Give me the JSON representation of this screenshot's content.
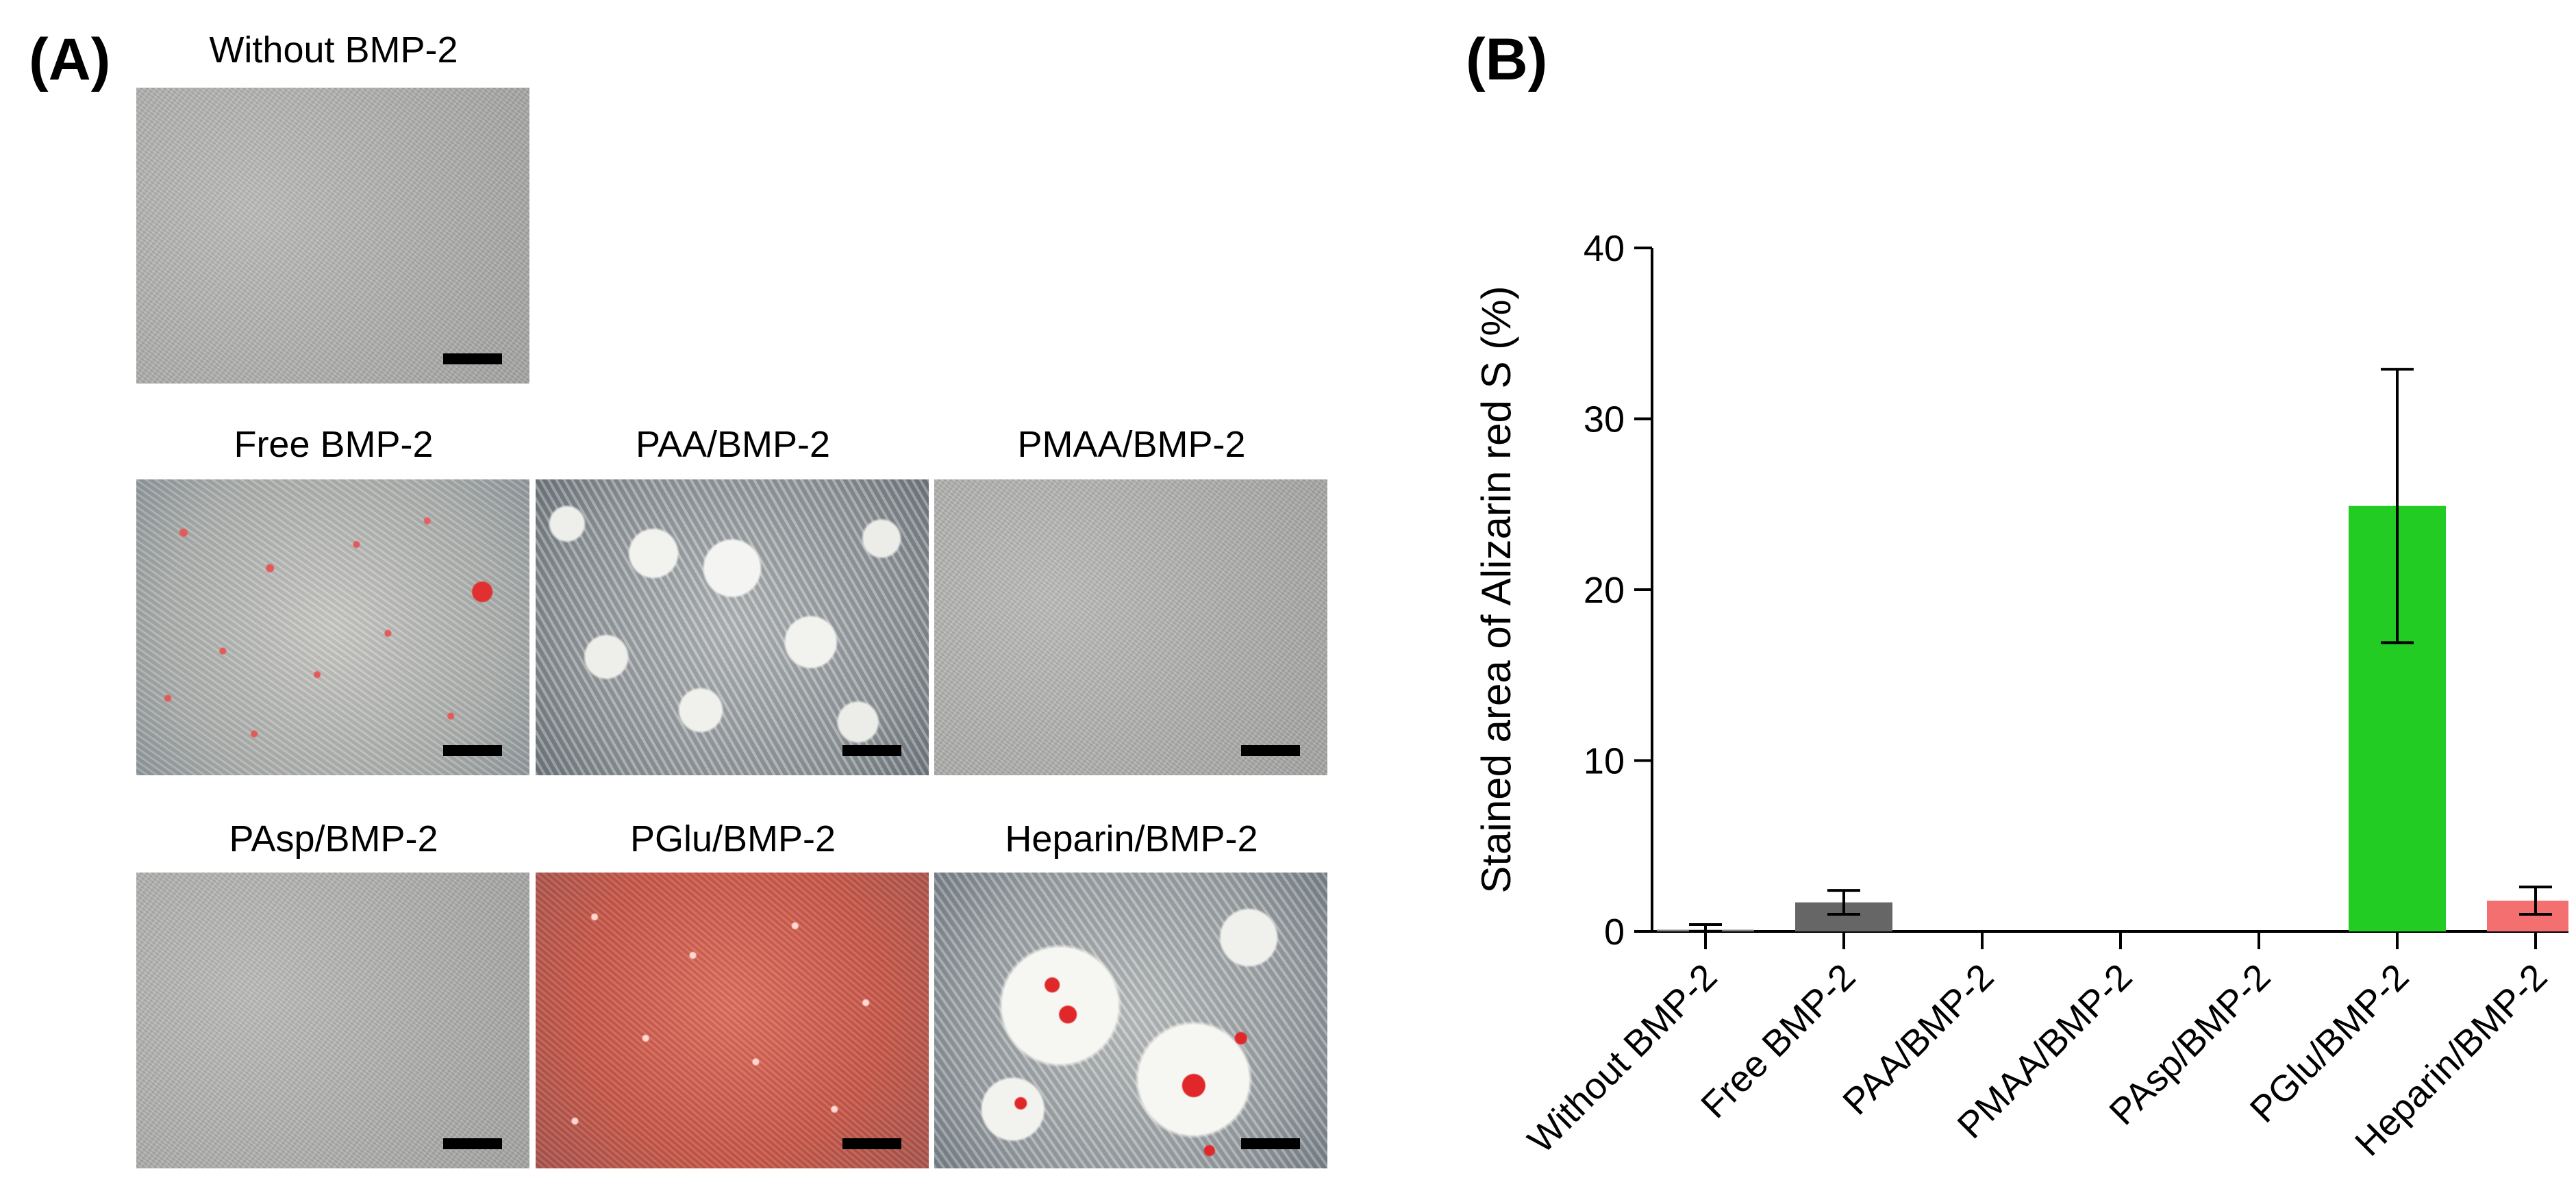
{
  "panel_a": {
    "label": "(A)",
    "images": [
      {
        "title": "Without BMP-2",
        "texture": "grey-unstained"
      },
      {
        "title": "Free BMP-2",
        "texture": "grey-sparse-red-dots"
      },
      {
        "title": "PAA/BMP-2",
        "texture": "white-nodules"
      },
      {
        "title": "PMAA/BMP-2",
        "texture": "grey-unstained"
      },
      {
        "title": "PAsp/BMP-2",
        "texture": "grey-unstained"
      },
      {
        "title": "PGlu/BMP-2",
        "texture": "red-stained"
      },
      {
        "title": "Heparin/BMP-2",
        "texture": "white-nodules-red-spots"
      }
    ]
  },
  "panel_b": {
    "label": "(B)"
  },
  "chart_data": {
    "type": "bar",
    "title": "",
    "xlabel": "",
    "ylabel": "Stained area of Alizarin red S (%)",
    "ylim": [
      0,
      40
    ],
    "yticks": [
      0,
      10,
      20,
      30,
      40
    ],
    "grid": false,
    "categories": [
      "Without BMP-2",
      "Free BMP-2",
      "PAA/BMP-2",
      "PMAA/BMP-2",
      "PAsp/BMP-2",
      "PGlu/BMP-2",
      "Heparin/BMP-2"
    ],
    "values": [
      0.1,
      1.7,
      0.0,
      0.0,
      0.0,
      24.9,
      1.8
    ],
    "errors": [
      0.3,
      0.7,
      0.0,
      0.0,
      0.0,
      8.0,
      0.8
    ],
    "colors": [
      "#808080",
      "#666666",
      "#808080",
      "#808080",
      "#808080",
      "#22cc22",
      "#f47070"
    ]
  }
}
